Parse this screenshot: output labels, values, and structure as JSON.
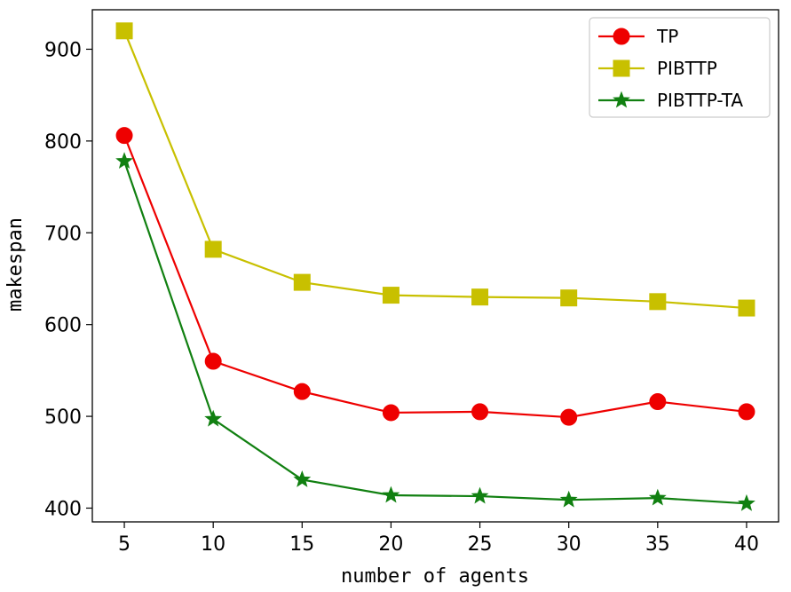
{
  "chart_data": {
    "type": "line",
    "title": "",
    "xlabel": "number of agents",
    "ylabel": "makespan",
    "x": [
      5,
      10,
      15,
      20,
      25,
      30,
      35,
      40
    ],
    "xticks": [
      5,
      10,
      15,
      20,
      25,
      30,
      35,
      40
    ],
    "yticks": [
      400,
      500,
      600,
      700,
      800,
      900
    ],
    "xlim": [
      3.2,
      41.8
    ],
    "ylim": [
      385,
      943
    ],
    "grid": false,
    "legend_position": "top-right",
    "series": [
      {
        "name": "TP",
        "color": "#ee0000",
        "marker": "circle",
        "values": [
          806,
          560,
          527,
          504,
          505,
          499,
          516,
          505
        ]
      },
      {
        "name": "PIBTTP",
        "color": "#c8c000",
        "marker": "square",
        "values": [
          920,
          682,
          646,
          632,
          630,
          629,
          625,
          618
        ]
      },
      {
        "name": "PIBTTP-TA",
        "color": "#118011",
        "marker": "star",
        "values": [
          778,
          497,
          431,
          414,
          413,
          409,
          411,
          405
        ]
      }
    ]
  }
}
